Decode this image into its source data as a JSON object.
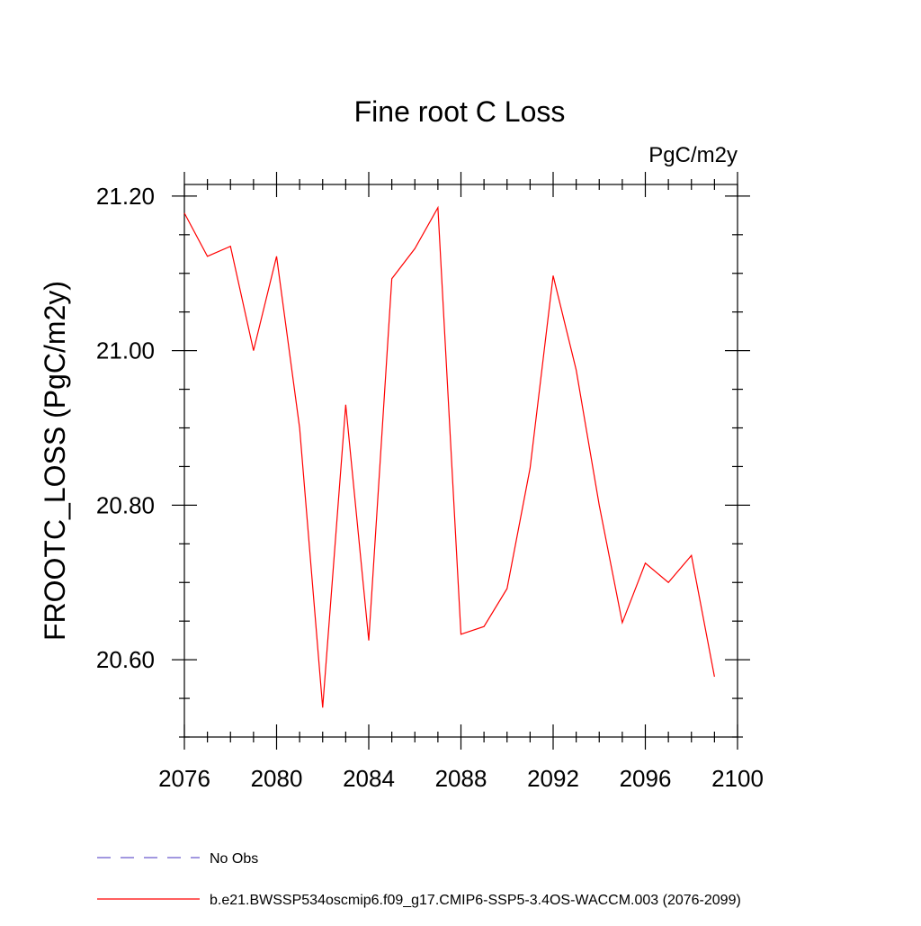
{
  "chart_data": {
    "type": "line",
    "title": "Fine root C Loss",
    "units": "PgC/m2y",
    "ylabel": "FROOTC_LOSS  (PgC/m2y)",
    "xlabel": "",
    "xlim": [
      2076,
      2100
    ],
    "ylim": [
      20.5,
      21.215
    ],
    "x_ticks": [
      2076,
      2080,
      2084,
      2088,
      2092,
      2096,
      2100
    ],
    "y_ticks": [
      20.6,
      20.8,
      21.0,
      21.2
    ],
    "y_tick_labels": [
      "20.60",
      "20.80",
      "21.00",
      "21.20"
    ],
    "grid": false,
    "legend_position": "bottom-left",
    "series": [
      {
        "name": "No Obs",
        "color": "#6a5acd",
        "dash": "dashed",
        "x": [],
        "values": []
      },
      {
        "name": "b.e21.BWSSP534oscmip6.f09_g17.CMIP6-SSP5-3.4OS-WACCM.003 (2076-2099)",
        "color": "#ff0000",
        "dash": "solid",
        "x": [
          2076,
          2077,
          2078,
          2079,
          2080,
          2081,
          2082,
          2083,
          2084,
          2085,
          2086,
          2087,
          2088,
          2089,
          2090,
          2091,
          2092,
          2093,
          2094,
          2095,
          2096,
          2097,
          2098,
          2099
        ],
        "values": [
          21.178,
          21.122,
          21.135,
          21.0,
          21.122,
          20.9,
          20.538,
          20.93,
          20.625,
          21.093,
          21.132,
          21.185,
          20.633,
          20.643,
          20.692,
          20.848,
          21.097,
          20.975,
          20.8,
          20.648,
          20.725,
          20.7,
          20.735,
          20.578
        ]
      }
    ]
  }
}
